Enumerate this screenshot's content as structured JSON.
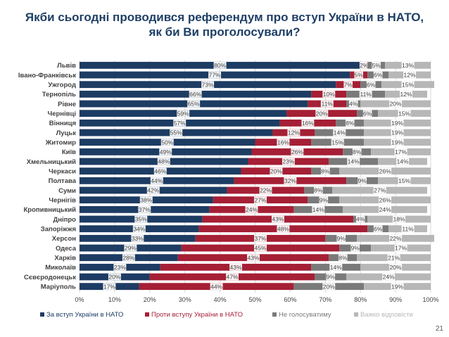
{
  "title_line1": "Якби сьогодні проводився референдум про вступ України в НАТО,",
  "title_line2": "як би Ви проголосували?",
  "page_number": "21",
  "colors": {
    "series": [
      "#1d3c63",
      "#a51f35",
      "#7a7a7a",
      "#b7b7b7"
    ],
    "grid": "#d9d9d9",
    "title": "#1f3f66"
  },
  "chart_data": {
    "type": "bar",
    "orientation": "horizontal",
    "stacked": true,
    "categories": [
      "Львів",
      "Івано-Франківськ",
      "Ужгород",
      "Тернопіль",
      "Рівне",
      "Чернівці",
      "Вінниця",
      "Луцьк",
      "Житомир",
      "Київ",
      "Хмельницький",
      "Черкаси",
      "Полтава",
      "Суми",
      "Чернігів",
      "Кропивницький",
      "Дніпро",
      "Запоріжжя",
      "Херсон",
      "Одеса",
      "Харків",
      "Миколаїв",
      "Сєвєродонецьк",
      "Маріуполь"
    ],
    "series": [
      {
        "name": "За вступ України в НАТО",
        "values": [
          80,
          77,
          73,
          66,
          65,
          59,
          57,
          55,
          50,
          49,
          48,
          46,
          44,
          42,
          38,
          37,
          35,
          34,
          33,
          29,
          28,
          23,
          20,
          17
        ]
      },
      {
        "name": "Проти вступу України в НАТО",
        "values": [
          2,
          5,
          7,
          10,
          11,
          20,
          16,
          12,
          16,
          26,
          23,
          20,
          32,
          22,
          27,
          24,
          43,
          48,
          37,
          45,
          43,
          43,
          47,
          44
        ]
      },
      {
        "name": "Не голосуватиму",
        "values": [
          5,
          6,
          6,
          11,
          4,
          6,
          8,
          14,
          15,
          8,
          14,
          8,
          9,
          8,
          9,
          14,
          4,
          6,
          9,
          9,
          8,
          14,
          9,
          20
        ]
      },
      {
        "name": "Важко відповісти",
        "values": [
          13,
          12,
          15,
          12,
          20,
          15,
          19,
          19,
          19,
          17,
          14,
          26,
          15,
          27,
          26,
          24,
          18,
          11,
          22,
          17,
          21,
          20,
          24,
          19
        ]
      }
    ],
    "xlim": [
      0,
      100
    ],
    "x_ticks": [
      "0%",
      "10%",
      "20%",
      "30%",
      "40%",
      "50%",
      "60%",
      "70%",
      "80%",
      "90%",
      "100%"
    ],
    "value_suffix": "%",
    "legend_position": "bottom",
    "grid": true
  }
}
